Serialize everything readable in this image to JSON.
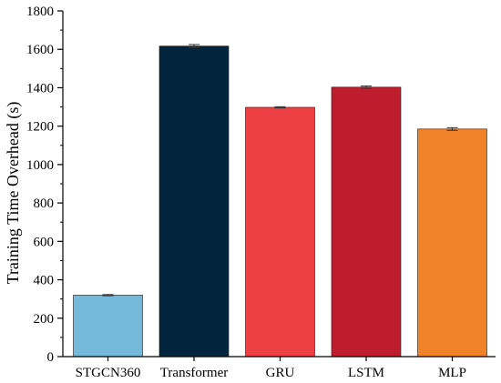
{
  "chart_data": {
    "type": "bar",
    "title": "",
    "xlabel": "",
    "ylabel": "Training Time Overhead (s)",
    "ylim": [
      0,
      1800
    ],
    "yticks": [
      0,
      200,
      400,
      600,
      800,
      1000,
      1200,
      1400,
      1600,
      1800
    ],
    "categories": [
      "STGCN360",
      "Transformer",
      "GRU",
      "LSTM",
      "MLP"
    ],
    "values": [
      320,
      1617,
      1298,
      1403,
      1185
    ],
    "errors": [
      3,
      8,
      3,
      6,
      7
    ],
    "colors": [
      "#74B9DA",
      "#02253D",
      "#ED4045",
      "#BE1D2D",
      "#F0822A"
    ],
    "grid": false,
    "legend": "none"
  }
}
